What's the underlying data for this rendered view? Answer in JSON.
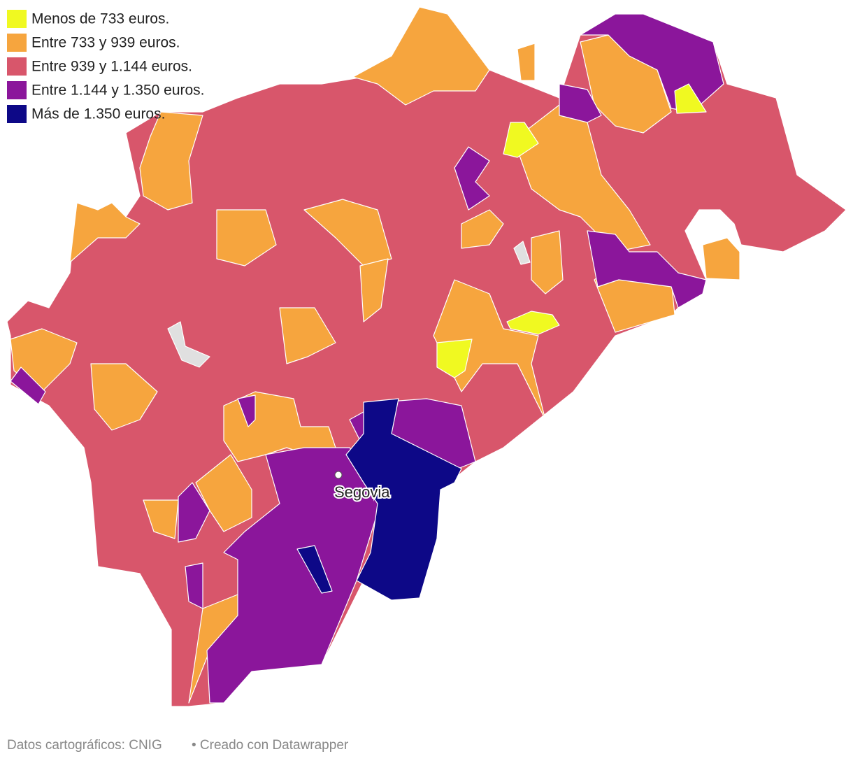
{
  "legend": [
    {
      "label": "Menos de 733 euros.",
      "color": "#f0f921"
    },
    {
      "label": "Entre 733 y 939 euros.",
      "color": "#f6a53e"
    },
    {
      "label": "Entre 939 y 1.144 euros.",
      "color": "#d8566b"
    },
    {
      "label": "Entre 1.144 y 1.350 euros.",
      "color": "#8b169b"
    },
    {
      "label": "Más de 1.350 euros.",
      "color": "#0d0887"
    }
  ],
  "map": {
    "city": "Segovia"
  },
  "footer": {
    "source": "Datos cartográficos: CNIG",
    "credit": "• Creado con Datawrapper"
  }
}
